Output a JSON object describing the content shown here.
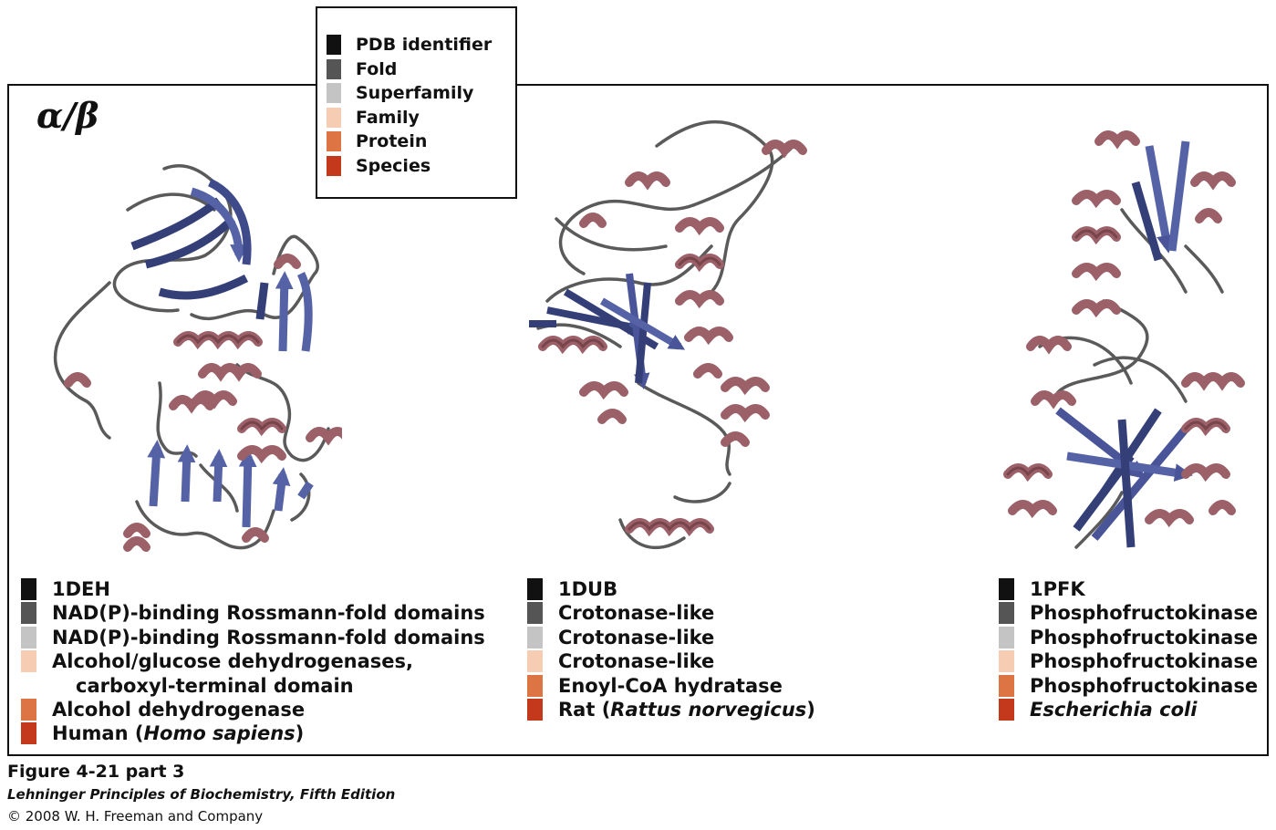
{
  "legend": {
    "items": [
      {
        "label": "PDB identifier",
        "color": "#111111"
      },
      {
        "label": "Fold",
        "color": "#555555"
      },
      {
        "label": "Superfamily",
        "color": "#c4c4c4"
      },
      {
        "label": "Family",
        "color": "#f6cdb2"
      },
      {
        "label": "Protein",
        "color": "#dc7443"
      },
      {
        "label": "Species",
        "color": "#c4381c"
      }
    ]
  },
  "class_symbol": "α/β",
  "colors": {
    "helix": "#9c6168",
    "helix_dark": "#6f3e45",
    "strand": "#5563a6",
    "strand_dark": "#343f78",
    "loop": "#5a5a5a"
  },
  "proteins": [
    {
      "pdb": "1DEH",
      "fold": "NAD(P)-binding Rossmann-fold domains",
      "superfamily": "NAD(P)-binding Rossmann-fold domains",
      "family_line1": "Alcohol/glucose dehydrogenases,",
      "family_line2": "carboxyl-terminal domain",
      "protein": "Alcohol dehydrogenase",
      "species_common": "Human (",
      "species_latin": "Homo sapiens",
      "species_close": ")"
    },
    {
      "pdb": "1DUB",
      "fold": "Crotonase-like",
      "superfamily": "Crotonase-like",
      "family": "Crotonase-like",
      "protein": "Enoyl-CoA hydratase",
      "species_common": "Rat (",
      "species_latin": "Rattus norvegicus",
      "species_close": ")"
    },
    {
      "pdb": "1PFK",
      "fold": "Phosphofructokinase",
      "superfamily": "Phosphofructokinase",
      "family": "Phosphofructokinase",
      "protein": "Phosphofructokinase",
      "species_latin": "Escherichia coli"
    }
  ],
  "caption": {
    "title": "Figure 4-21 part 3",
    "book": "Lehninger Principles of Biochemistry, Fifth Edition",
    "copyright": "© 2008 W. H. Freeman and Company"
  }
}
